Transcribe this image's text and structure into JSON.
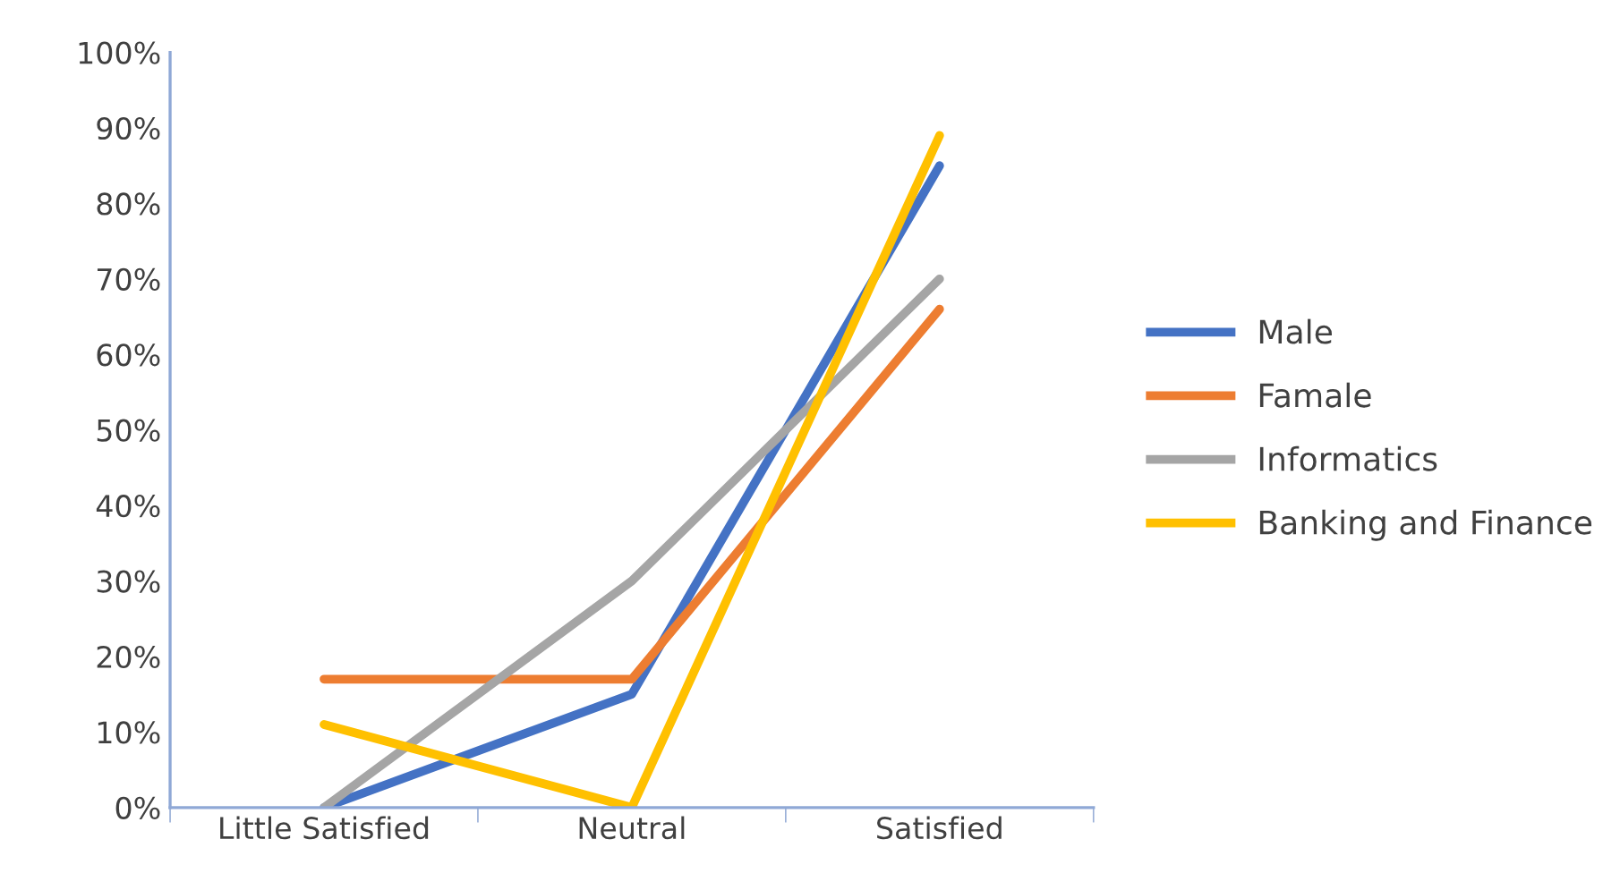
{
  "chart_data": {
    "type": "line",
    "categories": [
      "Little Satisfied",
      "Neutral",
      "Satisfied"
    ],
    "series": [
      {
        "name": "Male",
        "color": "#4472c4",
        "values": [
          0,
          15,
          85
        ]
      },
      {
        "name": "Famale",
        "color": "#ed7d31",
        "values": [
          17,
          17,
          66
        ]
      },
      {
        "name": "Informatics",
        "color": "#a5a5a5",
        "values": [
          0,
          30,
          70
        ]
      },
      {
        "name": "Banking and Finance",
        "color": "#ffc000",
        "values": [
          11,
          0,
          89
        ]
      }
    ],
    "ylim": [
      0,
      100
    ],
    "yticks": [
      {
        "value": 0,
        "label": "0%"
      },
      {
        "value": 10,
        "label": "10%"
      },
      {
        "value": 20,
        "label": "20%"
      },
      {
        "value": 30,
        "label": "30%"
      },
      {
        "value": 40,
        "label": "40%"
      },
      {
        "value": 50,
        "label": "50%"
      },
      {
        "value": 60,
        "label": "60%"
      },
      {
        "value": 70,
        "label": "70%"
      },
      {
        "value": 80,
        "label": "80%"
      },
      {
        "value": 90,
        "label": "90%"
      },
      {
        "value": 100,
        "label": "100%"
      }
    ],
    "grid": false,
    "legend": "right",
    "marker": "none",
    "line_style": "solid"
  }
}
